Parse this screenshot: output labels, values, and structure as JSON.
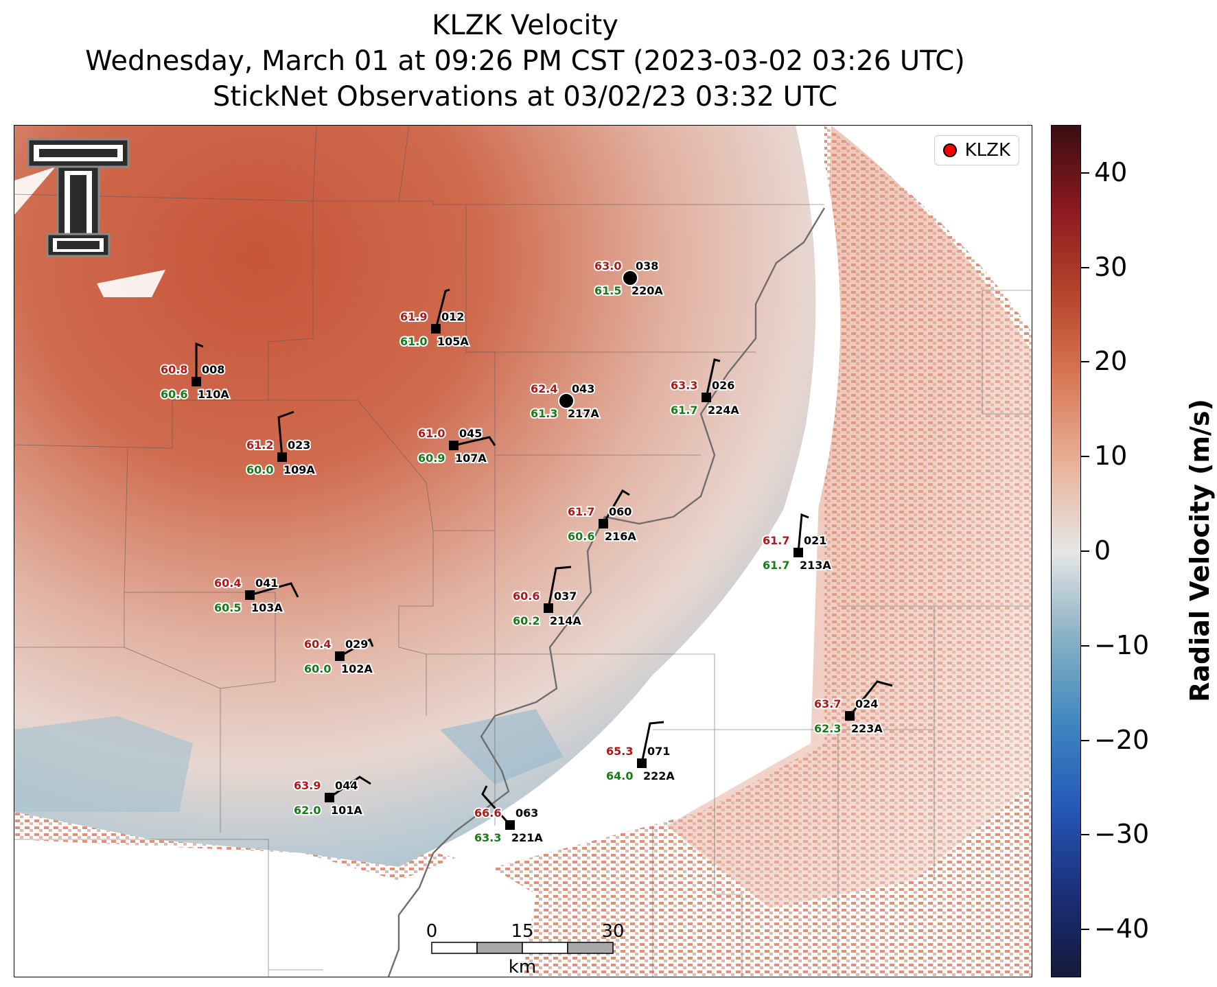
{
  "title": {
    "line1": "KLZK Velocity",
    "line2": "Wednesday, March 01 at 09:26 PM CST (2023-03-02 03:26 UTC)",
    "line3": "StickNet Observations at 03/02/23 03:32 UTC"
  },
  "legend": {
    "label": "KLZK",
    "marker_color": "#ff0000"
  },
  "logo": {
    "name": "texas-tech-double-t-logo"
  },
  "colorbar": {
    "label": "Radial Velocity (m/s)",
    "range": [
      -45,
      45
    ],
    "ticks": [
      "40",
      "30",
      "20",
      "10",
      "0",
      "−10",
      "−20",
      "−30",
      "−40"
    ],
    "colors": {
      "negative_max": "#141a3a",
      "negative_mid": "#3f88c0",
      "zero": "#e6e6e6",
      "positive_mid": "#d97a57",
      "positive_max": "#3a0d12"
    }
  },
  "scale_bar": {
    "ticks": [
      "0",
      "15",
      "30"
    ],
    "unit": "km"
  },
  "stations": [
    {
      "id": "038",
      "code": "220A",
      "temp": "63.0",
      "dew": "61.5",
      "radar": true
    },
    {
      "id": "012",
      "code": "105A",
      "temp": "61.9",
      "dew": "61.0"
    },
    {
      "id": "008",
      "code": "110A",
      "temp": "60.8",
      "dew": "60.6"
    },
    {
      "id": "043",
      "code": "217A",
      "temp": "62.4",
      "dew": "61.3",
      "radar": true
    },
    {
      "id": "026",
      "code": "224A",
      "temp": "63.3",
      "dew": "61.7"
    },
    {
      "id": "023",
      "code": "109A",
      "temp": "61.2",
      "dew": "60.0"
    },
    {
      "id": "045",
      "code": "107A",
      "temp": "61.0",
      "dew": "60.9"
    },
    {
      "id": "060",
      "code": "216A",
      "temp": "61.7",
      "dew": "60.6"
    },
    {
      "id": "021",
      "code": "213A",
      "temp": "61.7",
      "dew": "61.7"
    },
    {
      "id": "041",
      "code": "103A",
      "temp": "60.4",
      "dew": "60.5"
    },
    {
      "id": "037",
      "code": "214A",
      "temp": "60.6",
      "dew": "60.2"
    },
    {
      "id": "029",
      "code": "102A",
      "temp": "60.4",
      "dew": "60.0"
    },
    {
      "id": "024",
      "code": "223A",
      "temp": "63.7",
      "dew": "62.3"
    },
    {
      "id": "071",
      "code": "222A",
      "temp": "65.3",
      "dew": "64.0"
    },
    {
      "id": "044",
      "code": "101A",
      "temp": "63.9",
      "dew": "62.0"
    },
    {
      "id": "063",
      "code": "221A",
      "temp": "66.6",
      "dew": "63.3"
    }
  ]
}
